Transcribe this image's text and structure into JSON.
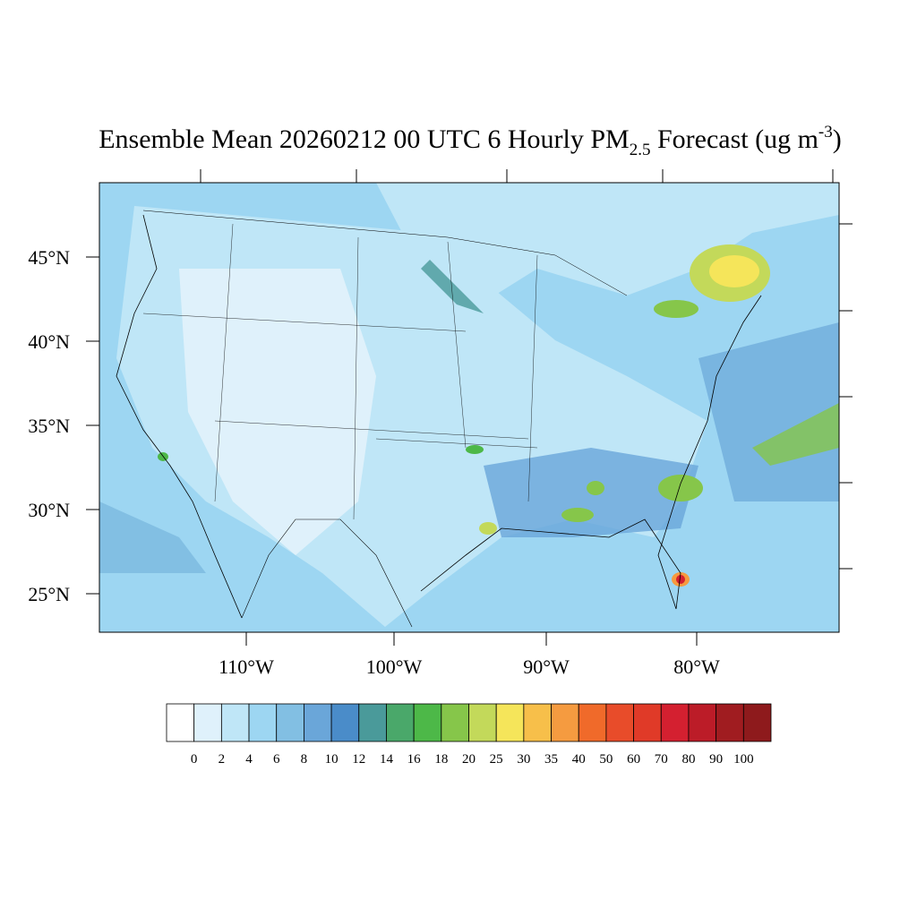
{
  "title": {
    "text": "Ensemble Mean 20260212 00 UTC 6 Hourly PM",
    "subscript": "2.5",
    "after": " Forecast (ug m",
    "superscript": "-3",
    "end": ")"
  },
  "latitude_labels": [
    "45°N",
    "40°N",
    "35°N",
    "30°N",
    "25°N"
  ],
  "longitude_labels": [
    "110°W",
    "100°W",
    "90°W",
    "80°W"
  ],
  "colorbar": {
    "levels": [
      0,
      2,
      4,
      6,
      8,
      10,
      12,
      14,
      16,
      18,
      20,
      25,
      30,
      35,
      40,
      50,
      60,
      70,
      80,
      90,
      100
    ],
    "colors": [
      "#ffffff",
      "#dff1fb",
      "#bfe6f7",
      "#9dd6f2",
      "#82bfe3",
      "#6aa6d9",
      "#4a8cc9",
      "#4a9a9a",
      "#4aa86a",
      "#4db848",
      "#86c64a",
      "#c3d95a",
      "#f5e55a",
      "#f7bf4a",
      "#f59b40",
      "#f06a2a",
      "#e84c2a",
      "#e03a28",
      "#d42030",
      "#bc1c28",
      "#a01c20",
      "#8e1a1c"
    ]
  }
}
